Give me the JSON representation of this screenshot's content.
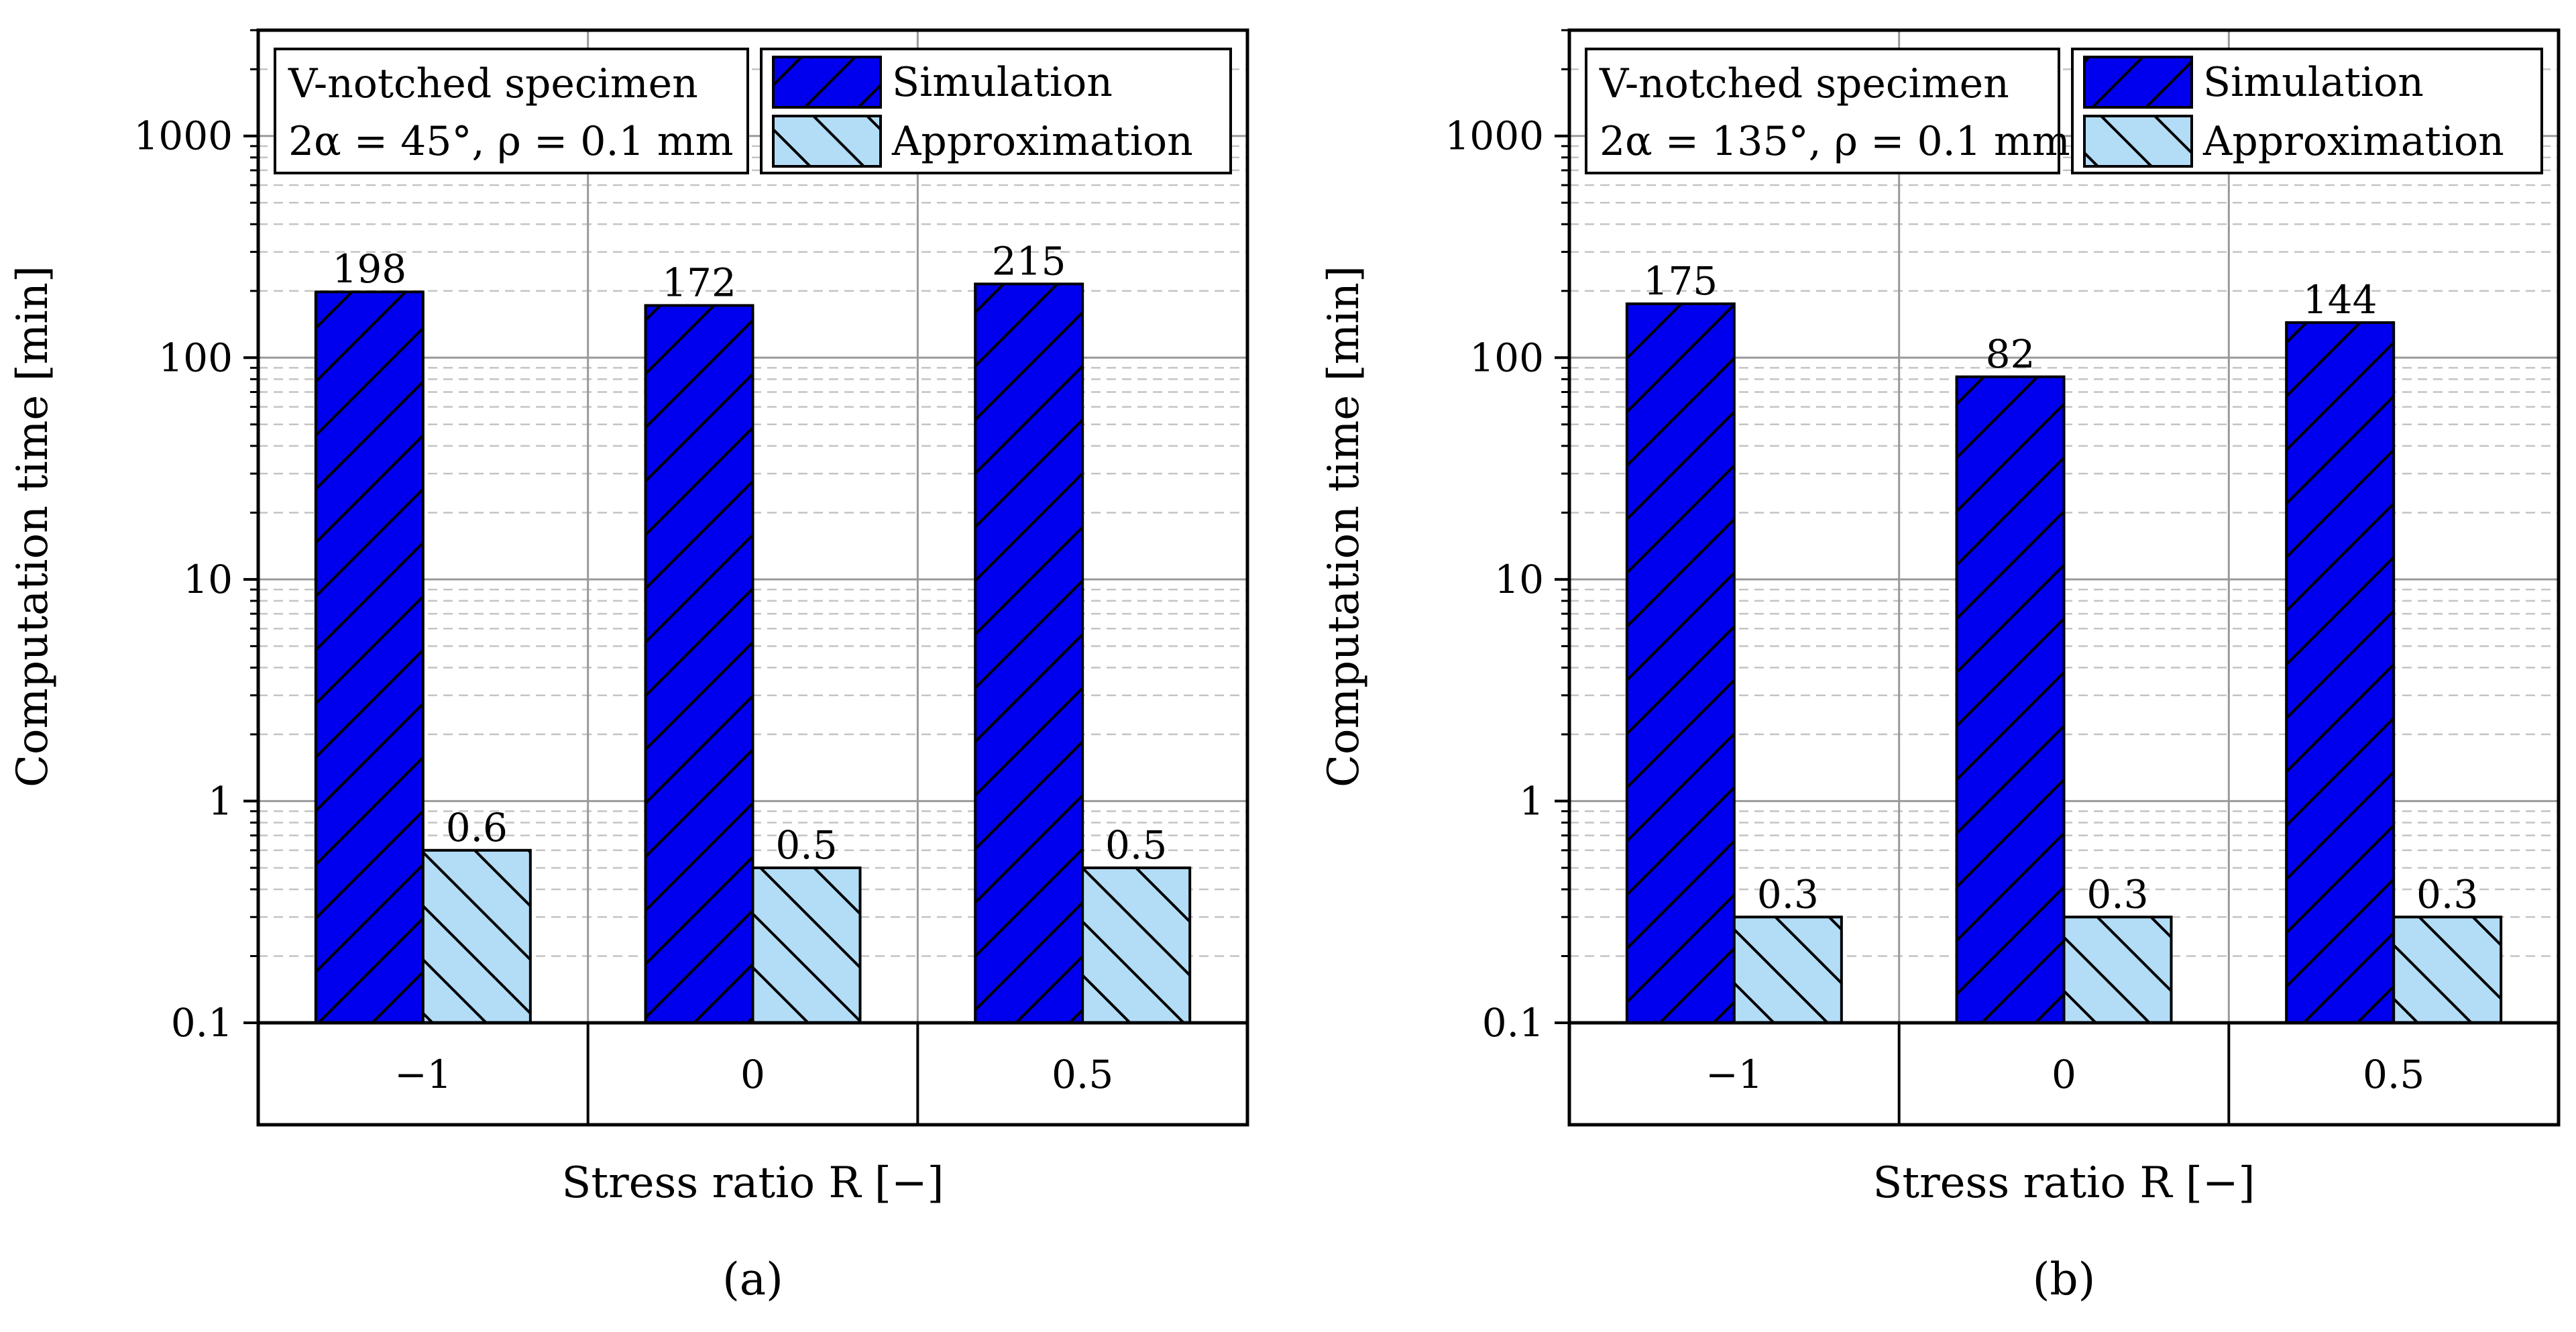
{
  "chart_data": [
    {
      "type": "bar",
      "panel_label": "(a)",
      "annotation": {
        "line1": "V-notched specimen",
        "line2": "2α = 45°, ρ = 0.1 mm"
      },
      "categories": [
        "−1",
        "0",
        "0.5"
      ],
      "series": [
        {
          "name": "Simulation",
          "values": [
            198,
            172,
            215
          ],
          "labels": [
            "198",
            "172",
            "215"
          ],
          "color": "#0000ee",
          "hatch": "forward-diagonal"
        },
        {
          "name": "Approximation",
          "values": [
            0.6,
            0.5,
            0.5
          ],
          "labels": [
            "0.6",
            "0.5",
            "0.5"
          ],
          "color": "#b3ddf7",
          "hatch": "backward-diagonal"
        }
      ],
      "xlabel": "Stress ratio R [−]",
      "ylabel": "Computation time [min]",
      "yscale": "log",
      "ylim": [
        0.1,
        3000
      ],
      "yticks": [
        "0.1",
        "1",
        "10",
        "100",
        "1000"
      ],
      "grid": true,
      "legend_position": "top-right"
    },
    {
      "type": "bar",
      "panel_label": "(b)",
      "annotation": {
        "line1": "V-notched specimen",
        "line2": "2α = 135°, ρ = 0.1 mm"
      },
      "categories": [
        "−1",
        "0",
        "0.5"
      ],
      "series": [
        {
          "name": "Simulation",
          "values": [
            175,
            82,
            144
          ],
          "labels": [
            "175",
            "82",
            "144"
          ],
          "color": "#0000ee",
          "hatch": "forward-diagonal"
        },
        {
          "name": "Approximation",
          "values": [
            0.3,
            0.3,
            0.3
          ],
          "labels": [
            "0.3",
            "0.3",
            "0.3"
          ],
          "color": "#b3ddf7",
          "hatch": "backward-diagonal"
        }
      ],
      "xlabel": "Stress ratio R [−]",
      "ylabel": "Computation time [min]",
      "yscale": "log",
      "ylim": [
        0.1,
        3000
      ],
      "yticks": [
        "0.1",
        "1",
        "10",
        "100",
        "1000"
      ],
      "grid": true,
      "legend_position": "top-right"
    }
  ]
}
